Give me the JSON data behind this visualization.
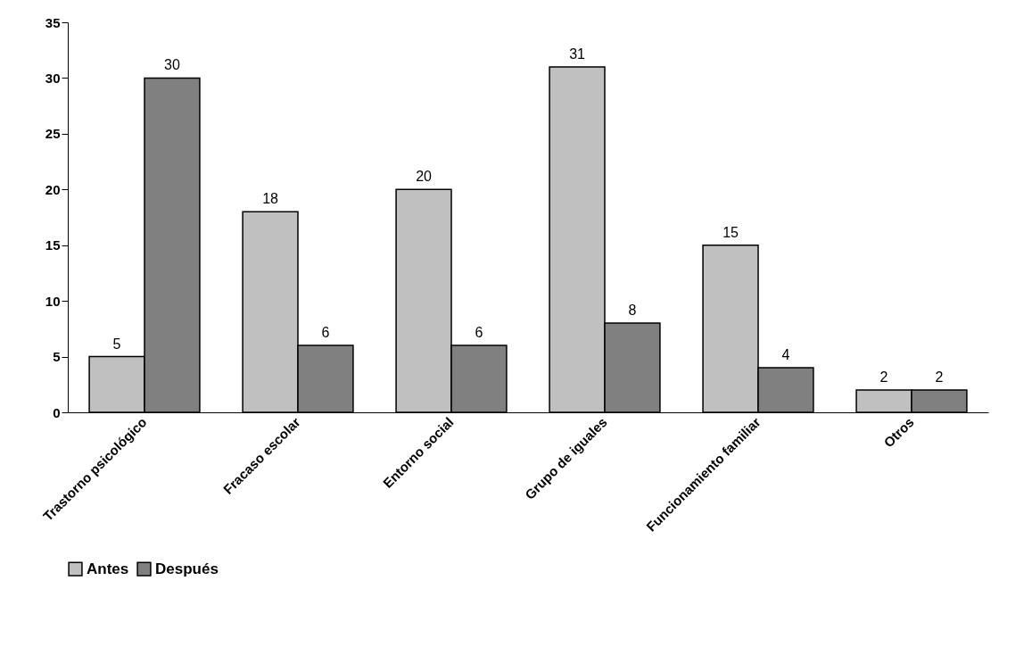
{
  "chart_data": {
    "type": "bar",
    "categories": [
      "Trastorno psicológico",
      "Fracaso escolar",
      "Entorno social",
      "Grupo de iguales",
      "Funcionamiento familiar",
      "Otros"
    ],
    "series": [
      {
        "name": "Antes",
        "color": "#c0c0c0",
        "values": [
          5,
          18,
          20,
          31,
          15,
          2
        ]
      },
      {
        "name": "Después",
        "color": "#808080",
        "values": [
          30,
          6,
          6,
          8,
          4,
          2
        ]
      }
    ],
    "ylim": [
      0,
      35
    ],
    "yticks": [
      0,
      5,
      10,
      15,
      20,
      25,
      30,
      35
    ],
    "grid": false,
    "legend": "bottom",
    "data_labels": true
  }
}
